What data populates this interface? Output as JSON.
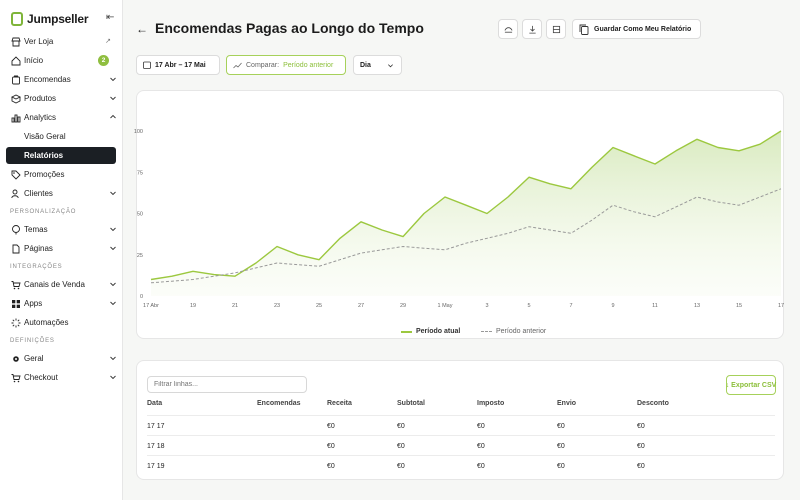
{
  "sidebar": {
    "brand": "Jumpseller",
    "items": {
      "store": "Ver Loja",
      "home": "Início",
      "home_badge": "2",
      "orders": "Encomendas",
      "products": "Produtos",
      "analytics": "Analytics",
      "overview": "Visão Geral",
      "reports": "Relatórios",
      "promotions": "Promoções",
      "customers": "Clientes",
      "themes": "Temas",
      "pages": "Páginas",
      "channels": "Canais de Venda",
      "apps": "Apps",
      "automations": "Automações",
      "general": "Geral",
      "checkout": "Checkout"
    },
    "sections": {
      "personalization": "PERSONALIZAÇÃO",
      "integrations": "INTEGRAÇÕES",
      "settings": "DEFINIÇÕES"
    }
  },
  "header": {
    "title": "Encomendas Pagas ao Longo do Tempo",
    "save_label": "Guardar Como Meu Relatório"
  },
  "filters": {
    "date_range": "17 Abr – 17 Mai",
    "compare_label": "Comparar:",
    "compare_value": "Período anterior",
    "granularity": "Dia"
  },
  "chart_data": {
    "type": "line",
    "x": [
      "17 Abr",
      "18",
      "19",
      "20",
      "21",
      "22",
      "23",
      "24",
      "25",
      "26",
      "27",
      "28",
      "29",
      "30",
      "1 May",
      "2",
      "3",
      "4",
      "5",
      "6",
      "7",
      "8",
      "9",
      "10",
      "11",
      "12",
      "13",
      "14",
      "15",
      "16",
      "17"
    ],
    "x_tick_labels": [
      "17 Abr",
      "19",
      "21",
      "23",
      "25",
      "27",
      "29",
      "1 May",
      "3",
      "5",
      "7",
      "9",
      "11",
      "13",
      "15",
      "17"
    ],
    "y_ticks": [
      0,
      25,
      50,
      75,
      100
    ],
    "ylim": [
      0,
      100
    ],
    "grid": false,
    "legend_position": "bottom-center",
    "series": [
      {
        "name": "Período atual",
        "color": "#9cc83f",
        "area": true,
        "values": [
          10,
          12,
          15,
          13,
          12,
          20,
          30,
          25,
          22,
          35,
          45,
          40,
          36,
          50,
          60,
          55,
          50,
          60,
          72,
          68,
          65,
          78,
          90,
          85,
          80,
          88,
          95,
          90,
          88,
          92,
          100
        ]
      },
      {
        "name": "Período anterior",
        "color": "#999999",
        "dashed": true,
        "values": [
          8,
          9,
          10,
          12,
          14,
          17,
          20,
          19,
          18,
          22,
          26,
          28,
          30,
          29,
          28,
          32,
          35,
          38,
          42,
          40,
          38,
          46,
          55,
          51,
          48,
          54,
          60,
          57,
          55,
          60,
          65
        ]
      }
    ]
  },
  "table": {
    "filter_placeholder": "Filtrar linhas...",
    "export_label": "↓ Exportar CSV",
    "columns": [
      "Data",
      "Encomendas",
      "Receita",
      "Subtotal",
      "Imposto",
      "Envio",
      "Desconto"
    ],
    "rows": [
      [
        "17 17",
        "",
        "€0",
        "€0",
        "€0",
        "€0",
        "€0"
      ],
      [
        "17 18",
        "",
        "€0",
        "€0",
        "€0",
        "€0",
        "€0"
      ],
      [
        "17 19",
        "",
        "€0",
        "€0",
        "€0",
        "€0",
        "€0"
      ]
    ]
  },
  "colors": {
    "accent": "#8cbf3a",
    "active_nav": "#1b1f24"
  }
}
